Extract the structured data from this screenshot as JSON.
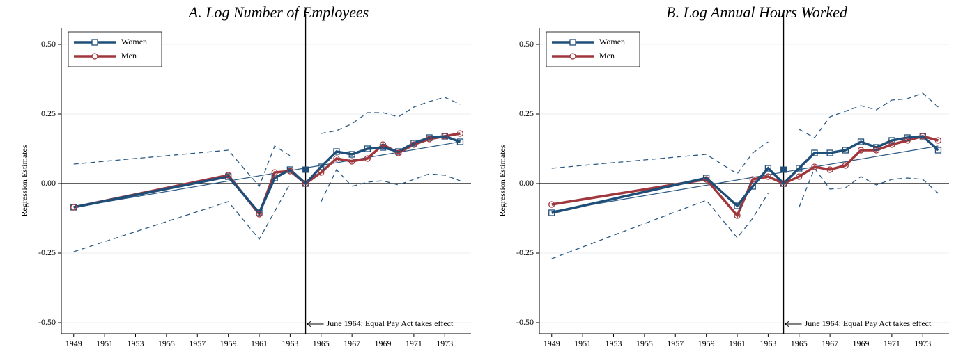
{
  "chart_data": [
    {
      "type": "line",
      "title": "A.   Log Number of Employees",
      "y_label": "Regression Estimates",
      "x": [
        1949,
        1959,
        1961,
        1962,
        1963,
        1964,
        1965,
        1966,
        1967,
        1968,
        1969,
        1970,
        1971,
        1972,
        1973,
        1974
      ],
      "series": [
        {
          "name": "Women",
          "color": "#1f4e79",
          "marker": "square",
          "values": [
            -0.085,
            0.025,
            -0.105,
            0.02,
            0.05,
            0,
            0.06,
            0.115,
            0.105,
            0.125,
            0.13,
            0.115,
            0.145,
            0.165,
            0.17,
            0.15
          ]
        },
        {
          "name": "Men",
          "color": "#a0373d",
          "marker": "circle",
          "values": [
            -0.085,
            0.03,
            -0.11,
            0.04,
            0.045,
            0,
            0.04,
            0.09,
            0.08,
            0.09,
            0.14,
            0.11,
            0.14,
            0.16,
            0.17,
            0.18
          ]
        }
      ],
      "ci_upper": [
        0.07,
        0.12,
        -0.01,
        0.135,
        0.1,
        null,
        0.18,
        0.19,
        0.215,
        0.255,
        0.255,
        0.24,
        0.275,
        0.295,
        0.31,
        0.285
      ],
      "ci_lower": [
        -0.245,
        -0.065,
        -0.2,
        -0.1,
        0.0,
        null,
        -0.065,
        0.05,
        -0.01,
        0.005,
        0.01,
        -0.005,
        0.015,
        0.035,
        0.03,
        0.01
      ],
      "ci_color": "#2b5a85",
      "trend": {
        "x": [
          1949,
          1974
        ],
        "values": [
          -0.085,
          0.15
        ],
        "color": "#2b5a85"
      },
      "highlight": {
        "x": 1964,
        "value": 0.05,
        "color": "#1f4e79"
      },
      "vline": 1964,
      "annotation": "June 1964: Equal Pay Act takes effect",
      "xlim": [
        1948.2,
        1974.7
      ],
      "xticks": [
        1949,
        1951,
        1953,
        1955,
        1957,
        1959,
        1961,
        1963,
        1965,
        1967,
        1969,
        1971,
        1973
      ],
      "ylim": [
        -0.54,
        0.56
      ],
      "yticks": [
        {
          "value": -0.5,
          "label": "-0.50"
        },
        -0.25,
        {
          "value": 0,
          "label": "0.00"
        },
        0.25,
        {
          "value": 0.5,
          "label": "0.50"
        }
      ],
      "grid": true,
      "legend": "top-left"
    },
    {
      "type": "line",
      "title": "B.   Log Annual Hours Worked",
      "y_label": "Regression Estimates",
      "x": [
        1949,
        1959,
        1961,
        1962,
        1963,
        1964,
        1965,
        1966,
        1967,
        1968,
        1969,
        1970,
        1971,
        1972,
        1973,
        1974
      ],
      "series": [
        {
          "name": "Women",
          "color": "#1f4e79",
          "marker": "square",
          "values": [
            -0.105,
            0.02,
            -0.08,
            -0.01,
            0.055,
            0,
            0.055,
            0.11,
            0.11,
            0.12,
            0.15,
            0.13,
            0.155,
            0.165,
            0.17,
            0.12
          ]
        },
        {
          "name": "Men",
          "color": "#a0373d",
          "marker": "circle",
          "values": [
            -0.075,
            0.015,
            -0.115,
            0.015,
            0.025,
            0,
            0.025,
            0.06,
            0.05,
            0.065,
            0.12,
            0.12,
            0.14,
            0.155,
            0.17,
            0.155
          ]
        }
      ],
      "ci_upper": [
        0.055,
        0.105,
        0.035,
        0.11,
        0.15,
        null,
        0.195,
        0.165,
        0.24,
        0.26,
        0.28,
        0.265,
        0.3,
        0.305,
        0.325,
        0.275
      ],
      "ci_lower": [
        -0.27,
        -0.06,
        -0.195,
        -0.125,
        -0.035,
        null,
        -0.085,
        0.055,
        -0.02,
        -0.015,
        0.025,
        -0.005,
        0.015,
        0.02,
        0.015,
        -0.035
      ],
      "ci_color": "#2b5a85",
      "trend": {
        "x": [
          1949,
          1974
        ],
        "values": [
          -0.1,
          0.135
        ],
        "color": "#2b5a85"
      },
      "highlight": {
        "x": 1964,
        "value": 0.05,
        "color": "#1f4e79"
      },
      "vline": 1964,
      "annotation": "June 1964: Equal Pay Act takes effect",
      "xlim": [
        1948.2,
        1974.7
      ],
      "xticks": [
        1949,
        1951,
        1953,
        1955,
        1957,
        1959,
        1961,
        1963,
        1965,
        1967,
        1969,
        1971,
        1973
      ],
      "ylim": [
        -0.54,
        0.56
      ],
      "yticks": [
        {
          "value": -0.5,
          "label": "-0.50"
        },
        -0.25,
        {
          "value": 0,
          "label": "0.00"
        },
        0.25,
        {
          "value": 0.5,
          "label": "0.50"
        }
      ],
      "grid": true,
      "legend": "top-left"
    }
  ]
}
